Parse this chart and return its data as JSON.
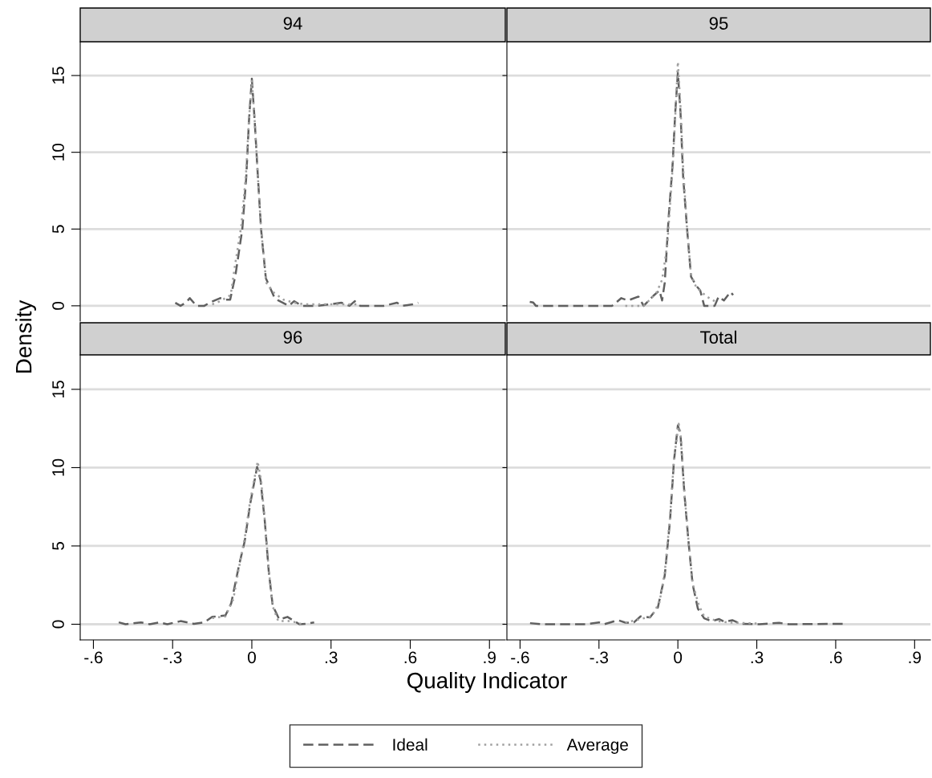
{
  "chart_data": [
    {
      "type": "line",
      "title": "94",
      "ylabel": "Density",
      "legend": "bottom",
      "grid": "y",
      "tick_labels": "y",
      "xlim": [
        -0.65,
        0.96
      ],
      "ylim": [
        -1,
        17.2
      ],
      "yticks": [
        0,
        5,
        10,
        15
      ],
      "series": [
        {
          "name": "Ideal",
          "color": "#606060",
          "line_style": "dashed",
          "x": [
            -0.29,
            -0.27,
            -0.25,
            -0.235,
            -0.22,
            -0.21,
            -0.18,
            -0.16,
            -0.12,
            -0.1,
            -0.082,
            -0.062,
            -0.036,
            -0.021,
            -0.011,
            0.0,
            0.011,
            0.023,
            0.035,
            0.053,
            0.084,
            0.1,
            0.14,
            0.16,
            0.19,
            0.25,
            0.34,
            0.37,
            0.39,
            0.41,
            0.5,
            0.55,
            0.57,
            0.61,
            0.63
          ],
          "values": [
            0.2,
            0,
            0.2,
            0.5,
            0.2,
            0,
            0,
            0.2,
            0.5,
            0.4,
            0.4,
            2.0,
            5.0,
            8.4,
            12.0,
            14.8,
            12.0,
            8.4,
            5.0,
            1.8,
            0.6,
            0.35,
            0,
            0.3,
            0,
            0,
            0.2,
            0,
            0.3,
            0,
            0,
            0.2,
            0,
            0.1,
            0.2
          ]
        },
        {
          "name": "Average",
          "color": "#a0a0a0",
          "line_style": "dotted",
          "x": [
            -0.15,
            -0.12,
            -0.1,
            -0.08,
            -0.065,
            -0.04,
            -0.022,
            -0.011,
            0.0,
            0.011,
            0.023,
            0.035,
            0.055,
            0.08,
            0.12,
            0.16,
            0.2,
            0.3,
            0.4
          ],
          "values": [
            0.1,
            0.3,
            0.5,
            0.7,
            2.5,
            5.2,
            8.6,
            12.1,
            14.7,
            12.0,
            8.4,
            5.0,
            1.5,
            0.9,
            0.4,
            0.2,
            0.1,
            0.1,
            0.1
          ]
        }
      ]
    },
    {
      "type": "line",
      "title": "95",
      "grid": "y",
      "tick_labels": false,
      "xlim": [
        -0.65,
        0.96
      ],
      "ylim": [
        -1,
        17.2
      ],
      "yticks": [
        0,
        5,
        10,
        15
      ],
      "series": [
        {
          "color": "#606060",
          "line_style": "dashed",
          "x": [
            -0.563,
            -0.55,
            -0.54,
            -0.25,
            -0.215,
            -0.19,
            -0.15,
            -0.13,
            -0.09,
            -0.07,
            -0.06,
            -0.05,
            -0.035,
            -0.02,
            -0.01,
            0.0,
            0.01,
            0.02,
            0.035,
            0.05,
            0.07,
            0.085,
            0.1,
            0.14,
            0.155,
            0.175,
            0.2,
            0.21
          ],
          "values": [
            0.26,
            0.22,
            0,
            0,
            0.5,
            0.35,
            0.6,
            0,
            0.7,
            1.0,
            0.35,
            1.5,
            5.8,
            9.2,
            12.6,
            15.2,
            12.6,
            8.4,
            5.0,
            1.9,
            1.3,
            1.0,
            0,
            0,
            0.6,
            0.35,
            0.9,
            0.7
          ]
        },
        {
          "color": "#a0a0a0",
          "line_style": "dotted",
          "x": [
            -0.2,
            -0.13,
            -0.1,
            -0.08,
            -0.06,
            -0.04,
            -0.02,
            -0.005,
            0.0,
            0.01,
            0.02,
            0.035,
            0.05,
            0.07,
            0.09,
            0.11,
            0.15
          ],
          "values": [
            0,
            0,
            0.5,
            0.9,
            1.7,
            4.0,
            9.0,
            14.0,
            15.9,
            13.0,
            9.0,
            5.0,
            2.0,
            1.2,
            0.9,
            0.6,
            0.2
          ]
        }
      ]
    },
    {
      "type": "line",
      "title": "96",
      "xlabel": "Quality Indicator",
      "grid": "y",
      "xlim": [
        -0.65,
        0.96
      ],
      "ylim": [
        -1,
        17.2
      ],
      "yticks": [
        0,
        5,
        10,
        15
      ],
      "xticks": [
        {
          "value": -0.6,
          "label": "-.6"
        },
        {
          "value": -0.3,
          "label": "-.3"
        },
        {
          "value": 0,
          "label": "0"
        },
        {
          "value": 0.3,
          "label": ".3"
        },
        {
          "value": 0.6,
          "label": ".6"
        },
        {
          "value": 0.9,
          "label": ".9"
        }
      ],
      "series": [
        {
          "color": "#606060",
          "line_style": "dashed",
          "x": [
            -0.504,
            -0.478,
            -0.42,
            -0.387,
            -0.35,
            -0.32,
            -0.27,
            -0.22,
            -0.18,
            -0.15,
            -0.1,
            -0.078,
            -0.048,
            -0.027,
            -0.007,
            0.02,
            0.033,
            0.049,
            0.064,
            0.079,
            0.104,
            0.135,
            0.18,
            0.206,
            0.236
          ],
          "values": [
            0.12,
            0,
            0.12,
            0,
            0.12,
            0,
            0.2,
            0.03,
            0.12,
            0.47,
            0.56,
            1.34,
            3.8,
            5.3,
            7.6,
            10.05,
            9.2,
            6.6,
            3.4,
            1.2,
            0.3,
            0.47,
            0,
            0.03,
            0.12
          ]
        },
        {
          "color": "#a0a0a0",
          "line_style": "dotted",
          "x": [
            -0.15,
            -0.1,
            -0.07,
            -0.05,
            -0.027,
            -0.007,
            0.022,
            0.035,
            0.05,
            0.065,
            0.08,
            0.1,
            0.15,
            0.19
          ],
          "values": [
            0.4,
            0.5,
            1.6,
            3.5,
            5.5,
            7.8,
            10.4,
            9.2,
            6.5,
            3.3,
            1.1,
            0.2,
            0.2,
            0
          ]
        }
      ]
    },
    {
      "type": "line",
      "title": "Total",
      "grid": "y",
      "tick_labels": "x",
      "xlim": [
        -0.65,
        0.96
      ],
      "ylim": [
        -1,
        17.2
      ],
      "yticks": [
        0,
        5,
        10,
        15
      ],
      "xticks": [
        {
          "value": -0.6,
          "label": "-.6"
        },
        {
          "value": -0.3,
          "label": "-.3"
        },
        {
          "value": 0,
          "label": "0"
        },
        {
          "value": 0.3,
          "label": ".3"
        },
        {
          "value": 0.6,
          "label": ".6"
        },
        {
          "value": 0.9,
          "label": ".9"
        }
      ],
      "series": [
        {
          "color": "#606060",
          "line_style": "dashed",
          "x": [
            -0.562,
            -0.52,
            -0.4,
            -0.35,
            -0.3,
            -0.28,
            -0.228,
            -0.197,
            -0.167,
            -0.142,
            -0.106,
            -0.076,
            -0.05,
            -0.03,
            -0.015,
            0.0,
            0.01,
            0.025,
            0.04,
            0.056,
            0.076,
            0.1,
            0.127,
            0.157,
            0.177,
            0.207,
            0.238,
            0.31,
            0.385,
            0.42,
            0.633
          ],
          "values": [
            0.07,
            0,
            0,
            0,
            0.12,
            0,
            0.26,
            0.09,
            0.12,
            0.5,
            0.44,
            1.08,
            3.1,
            6.6,
            10.4,
            12.7,
            12.1,
            8.3,
            5.35,
            2.56,
            1.0,
            0.38,
            0.2,
            0.33,
            0.16,
            0.26,
            0.03,
            0,
            0.09,
            0,
            0.03
          ]
        },
        {
          "color": "#a0a0a0",
          "line_style": "dotted",
          "x": [
            -0.2,
            -0.15,
            -0.1,
            -0.07,
            -0.05,
            -0.03,
            -0.015,
            0.003,
            0.01,
            0.025,
            0.04,
            0.056,
            0.08,
            0.1,
            0.15,
            0.2,
            0.3
          ],
          "values": [
            0.1,
            0.3,
            0.5,
            1.4,
            3.3,
            6.8,
            10.5,
            12.8,
            12.2,
            8.4,
            5.4,
            2.6,
            1.2,
            0.5,
            0.2,
            0.1,
            0.05
          ]
        }
      ]
    }
  ]
}
